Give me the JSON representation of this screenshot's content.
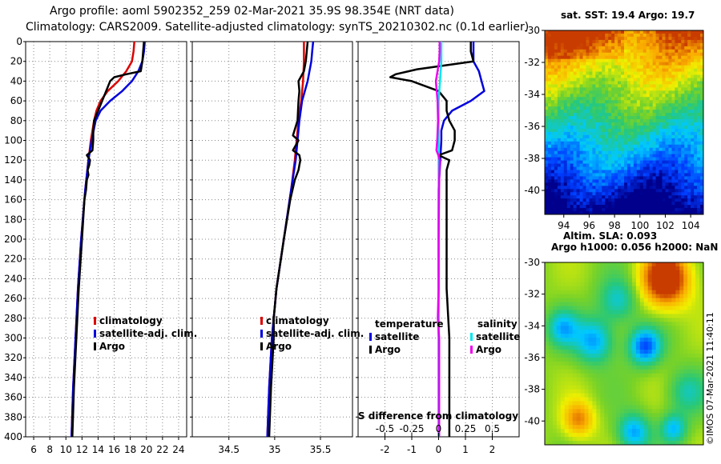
{
  "titles": {
    "line1": "Argo profile: aoml 5902352_259 02-Mar-2021 35.9S 98.354E (NRT data)",
    "line2": "Climatology: CARS2009. Satellite-adjusted climatology: synTS_20210302.nc (0.1d earlier)"
  },
  "sst_map": {
    "title": "sat. SST: 19.4 Argo: 19.7",
    "yticks": [
      "-30",
      "-32",
      "-34",
      "-36",
      "-38",
      "-40"
    ],
    "ylim": [
      -30,
      -41.5
    ],
    "xticks": [
      "94",
      "96",
      "98",
      "100",
      "102",
      "104"
    ],
    "xlim": [
      92.5,
      105
    ]
  },
  "sla_map": {
    "title1": "Altim. SLA: 0.093",
    "title2": "Argo h1000: 0.056 h2000: NaN",
    "yticks": [
      "-30",
      "-32",
      "-34",
      "-36",
      "-38",
      "-40"
    ],
    "ylim": [
      -30,
      -41.5
    ]
  },
  "watermark": "©IMOS 07-Mar-2021 11:40:11",
  "chart_data": [
    {
      "type": "line",
      "name": "temperature",
      "xlim": [
        5,
        25
      ],
      "ylim": [
        0,
        400
      ],
      "xticks": [
        6,
        8,
        10,
        12,
        14,
        16,
        18,
        20,
        22,
        24
      ],
      "yticks": [
        0,
        20,
        40,
        60,
        80,
        100,
        120,
        140,
        160,
        180,
        200,
        220,
        240,
        260,
        280,
        300,
        320,
        340,
        360,
        380,
        400
      ],
      "legend": [
        "climatology",
        "satellite-adj. clim.",
        "Argo"
      ],
      "series": [
        {
          "name": "climatology",
          "color": "#dd0000",
          "depth": [
            0,
            10,
            20,
            30,
            40,
            50,
            60,
            70,
            80,
            100,
            120,
            150,
            200,
            250,
            300,
            350,
            400
          ],
          "values": [
            18.5,
            18.4,
            18.2,
            17.5,
            16.5,
            15.2,
            14.3,
            13.8,
            13.5,
            13.1,
            12.8,
            12.4,
            11.9,
            11.5,
            11.2,
            10.9,
            10.7
          ]
        },
        {
          "name": "satellite-adj. clim.",
          "color": "#0000dd",
          "depth": [
            0,
            10,
            20,
            30,
            40,
            50,
            60,
            70,
            80,
            100,
            120,
            150,
            200,
            250,
            300,
            350,
            400
          ],
          "values": [
            19.8,
            19.7,
            19.5,
            19.0,
            18.2,
            17.0,
            15.5,
            14.3,
            13.7,
            13.2,
            12.8,
            12.4,
            11.9,
            11.5,
            11.2,
            10.9,
            10.7
          ]
        },
        {
          "name": "Argo",
          "color": "#000000",
          "depth": [
            0,
            10,
            20,
            30,
            33,
            36,
            40,
            50,
            60,
            70,
            80,
            90,
            100,
            110,
            115,
            120,
            125,
            130,
            135,
            140,
            150,
            160,
            200,
            250,
            300,
            350,
            400
          ],
          "values": [
            19.7,
            19.6,
            19.5,
            19.3,
            17.5,
            16.0,
            15.5,
            15.0,
            14.5,
            14.0,
            13.5,
            13.4,
            13.4,
            13.3,
            12.6,
            13.0,
            12.9,
            12.7,
            12.8,
            12.6,
            12.5,
            12.3,
            12.0,
            11.6,
            11.3,
            11.0,
            10.8
          ]
        }
      ]
    },
    {
      "type": "line",
      "name": "salinity",
      "xlim": [
        34.1,
        35.85
      ],
      "ylim": [
        0,
        400
      ],
      "xticks": [
        34.5,
        35,
        35.5
      ],
      "xtick_labels": [
        "34.5",
        "35",
        "35.5"
      ],
      "legend": [
        "climatology",
        "satellite-adj. clim.",
        "Argo"
      ],
      "series": [
        {
          "name": "climatology",
          "color": "#dd0000",
          "depth": [
            0,
            20,
            40,
            60,
            80,
            100,
            120,
            150,
            200,
            250,
            300,
            350,
            400
          ],
          "values": [
            35.32,
            35.32,
            35.31,
            35.29,
            35.26,
            35.24,
            35.22,
            35.18,
            35.1,
            35.02,
            34.97,
            34.94,
            34.92
          ]
        },
        {
          "name": "satellite-adj. clim.",
          "color": "#0000dd",
          "depth": [
            0,
            10,
            20,
            40,
            60,
            80,
            100,
            120,
            150,
            200,
            250,
            300,
            350,
            400
          ],
          "values": [
            35.42,
            35.41,
            35.4,
            35.36,
            35.3,
            35.27,
            35.25,
            35.23,
            35.18,
            35.1,
            35.02,
            34.97,
            34.94,
            34.92
          ]
        },
        {
          "name": "Argo",
          "color": "#000000",
          "depth": [
            0,
            10,
            20,
            30,
            40,
            50,
            60,
            80,
            95,
            100,
            110,
            115,
            120,
            125,
            130,
            140,
            160,
            200,
            250,
            280,
            300,
            350,
            400
          ],
          "values": [
            35.36,
            35.35,
            35.34,
            35.32,
            35.26,
            35.27,
            35.26,
            35.25,
            35.2,
            35.26,
            35.2,
            35.27,
            35.28,
            35.27,
            35.26,
            35.22,
            35.17,
            35.1,
            35.02,
            34.99,
            34.99,
            34.96,
            34.94
          ]
        }
      ]
    },
    {
      "type": "line",
      "name": "difference from climatology",
      "xlim": [
        -3,
        3
      ],
      "ylim": [
        0,
        400
      ],
      "xticks": [
        -2,
        -1,
        0,
        1,
        2
      ],
      "xtick_labels": [
        "-2",
        "-1",
        "0",
        "1",
        "2"
      ],
      "s_axis_label": "S difference from climatology",
      "s_xtick_labels": [
        "-0.5",
        "-0.25",
        "0",
        "0.25",
        "0.5"
      ],
      "legend_groups": {
        "temperature": [
          "satellite",
          "Argo"
        ],
        "salinity": [
          "satellite",
          "Argo"
        ]
      },
      "legend_title_t": "temperature",
      "legend_title_s": "salinity",
      "series": [
        {
          "name": "temperature satellite",
          "color": "#0000dd",
          "depth": [
            0,
            10,
            20,
            30,
            40,
            50,
            60,
            70,
            80,
            90,
            100,
            150,
            200,
            300,
            400
          ],
          "values": [
            1.3,
            1.3,
            1.3,
            1.5,
            1.6,
            1.7,
            1.2,
            0.5,
            0.2,
            0.1,
            0.1,
            0.0,
            0.0,
            0.0,
            0.0
          ]
        },
        {
          "name": "temperature Argo",
          "color": "#000000",
          "depth": [
            0,
            10,
            20,
            28,
            33,
            36,
            40,
            50,
            60,
            70,
            80,
            90,
            100,
            110,
            115,
            120,
            130,
            140,
            150,
            160,
            200,
            250,
            300,
            350,
            400
          ],
          "values": [
            1.2,
            1.2,
            1.3,
            -0.8,
            -1.6,
            -1.8,
            -1.0,
            0.0,
            0.3,
            0.3,
            0.4,
            0.6,
            0.6,
            0.5,
            0.0,
            0.4,
            0.3,
            0.3,
            0.3,
            0.3,
            0.3,
            0.3,
            0.4,
            0.4,
            0.4
          ]
        },
        {
          "name": "salinity satellite",
          "color": "#00e5ee",
          "depth": [
            0,
            20,
            40,
            60,
            80,
            100,
            150,
            200,
            250,
            300,
            400
          ],
          "values": [
            0.1,
            0.1,
            0.05,
            0.0,
            0.0,
            0.0,
            0.0,
            0.0,
            0.0,
            0.0,
            0.0
          ]
        },
        {
          "name": "salinity Argo",
          "color": "#ee00ee",
          "depth": [
            0,
            10,
            20,
            40,
            60,
            80,
            100,
            110,
            115,
            120,
            140,
            200,
            250,
            280,
            300,
            400
          ],
          "values": [
            0.04,
            0.04,
            0.02,
            -0.1,
            -0.04,
            -0.02,
            -0.05,
            -0.08,
            -0.01,
            0.04,
            0.02,
            0.0,
            0.0,
            -0.03,
            0.02,
            0.02
          ]
        }
      ]
    }
  ]
}
